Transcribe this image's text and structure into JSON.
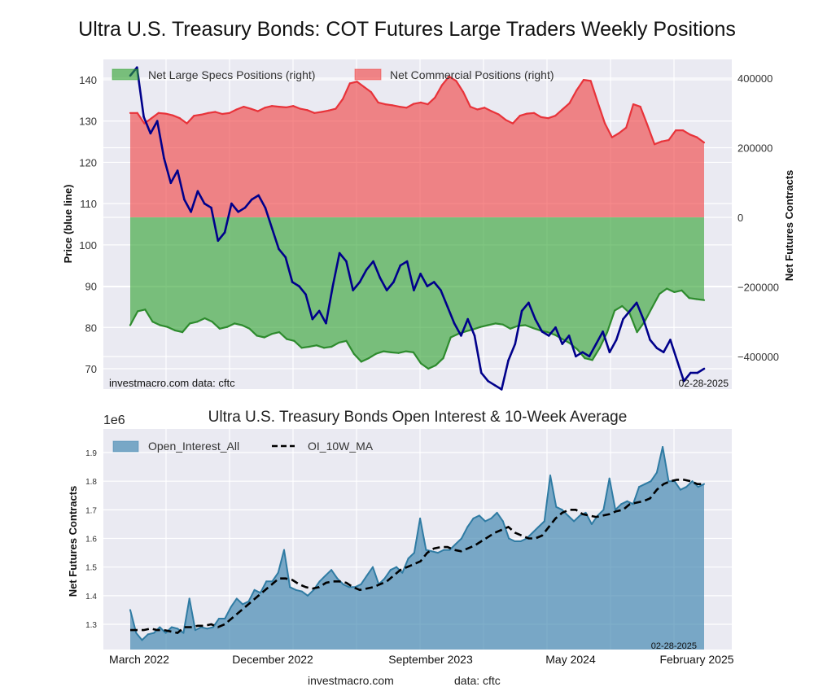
{
  "chart_data": [
    {
      "type": "area",
      "title": "Ultra U.S. Treasury Bonds: COT Futures Large Traders Weekly Positions",
      "ylabel": "Price (blue line)",
      "ylabel_right": "Net Futures Contracts",
      "ylim": [
        65,
        145
      ],
      "ylim_right": [
        -495000,
        450000
      ],
      "yticks": [
        70,
        80,
        90,
        100,
        110,
        120,
        130,
        140
      ],
      "yticks_right": [
        -400000,
        -200000,
        0,
        200000,
        400000
      ],
      "ytick_labels_right": [
        "−400000",
        "−200000",
        "0",
        "200000",
        "400000"
      ],
      "grid": true,
      "legend_position": "top-left",
      "watermark": "investmacro.com   data: cftc",
      "date_stamp": "02-28-2025",
      "x_index_range": [
        0,
        77
      ],
      "series": [
        {
          "name": "Net Large Specs Positions (right)",
          "axis": "right",
          "color": "#2ca02c",
          "values": [
            -310000,
            -270000,
            -265000,
            -300000,
            -310000,
            -315000,
            -325000,
            -330000,
            -305000,
            -300000,
            -290000,
            -300000,
            -320000,
            -315000,
            -305000,
            -310000,
            -320000,
            -340000,
            -345000,
            -335000,
            -330000,
            -350000,
            -355000,
            -375000,
            -372000,
            -368000,
            -375000,
            -372000,
            -360000,
            -355000,
            -392000,
            -415000,
            -405000,
            -392000,
            -385000,
            -388000,
            -390000,
            -385000,
            -388000,
            -420000,
            -435000,
            -425000,
            -405000,
            -345000,
            -335000,
            -328000,
            -322000,
            -315000,
            -310000,
            -305000,
            -308000,
            -320000,
            -312000,
            -310000,
            -318000,
            -325000,
            -330000,
            -338000,
            -350000,
            -362000,
            -380000,
            -405000,
            -410000,
            -375000,
            -330000,
            -268000,
            -255000,
            -275000,
            -330000,
            -300000,
            -260000,
            -220000,
            -205000,
            -215000,
            -210000,
            -232000,
            -235000,
            -238000
          ]
        },
        {
          "name": "Net Commercial Positions (right)",
          "axis": "right",
          "color": "#f03c3c",
          "values": [
            300000,
            300000,
            270000,
            285000,
            300000,
            298000,
            293000,
            285000,
            270000,
            292000,
            295000,
            300000,
            303000,
            297000,
            300000,
            310000,
            318000,
            312000,
            305000,
            315000,
            320000,
            318000,
            316000,
            320000,
            312000,
            308000,
            300000,
            303000,
            307000,
            312000,
            340000,
            385000,
            390000,
            375000,
            360000,
            330000,
            325000,
            322000,
            318000,
            315000,
            326000,
            330000,
            325000,
            344000,
            380000,
            405000,
            392000,
            360000,
            318000,
            310000,
            315000,
            305000,
            296000,
            280000,
            270000,
            292000,
            298000,
            300000,
            288000,
            285000,
            292000,
            310000,
            328000,
            365000,
            395000,
            392000,
            330000,
            270000,
            230000,
            242000,
            258000,
            325000,
            318000,
            265000,
            210000,
            218000,
            222000,
            250000,
            250000,
            238000,
            230000,
            215000
          ]
        },
        {
          "name": "Price (blue line)",
          "axis": "left",
          "color": "#00008b",
          "values": [
            141,
            143,
            131,
            127,
            130,
            121,
            115,
            118,
            111,
            108,
            113,
            110,
            109,
            101,
            103,
            110,
            108,
            109,
            111,
            112,
            109,
            104,
            99,
            97,
            91,
            90,
            88,
            82,
            84,
            81,
            90,
            98,
            96,
            89,
            91,
            94,
            96,
            92,
            89,
            91,
            95,
            96,
            89,
            93,
            90,
            91,
            89,
            85,
            81,
            78,
            82,
            78,
            69,
            67,
            66,
            65,
            72,
            76,
            84,
            86,
            82,
            79,
            78,
            80,
            76,
            78,
            73,
            74,
            73,
            76,
            79,
            74,
            77,
            82,
            84,
            86,
            82,
            77,
            75,
            74,
            77,
            72,
            67,
            69,
            69,
            70
          ]
        }
      ]
    },
    {
      "type": "area",
      "title": "Ultra U.S. Treasury Bonds Open Interest & 10-Week Average",
      "ylabel": "Net Futures Contracts",
      "scale_label": "1e6",
      "ylim": [
        1.2,
        1.96
      ],
      "yticks": [
        1.3,
        1.4,
        1.5,
        1.6,
        1.7,
        1.8,
        1.9
      ],
      "xtick_labels": [
        "March 2022",
        "December 2022",
        "September 2023",
        "May 2024",
        "February 2025"
      ],
      "grid": true,
      "legend_position": "top-left",
      "date_stamp": "02-28-2025",
      "series": [
        {
          "name": "Open_Interest_All",
          "color": "#3b82ad",
          "values": [
            1.35,
            1.27,
            1.245,
            1.265,
            1.27,
            1.29,
            1.27,
            1.29,
            1.285,
            1.27,
            1.39,
            1.28,
            1.29,
            1.285,
            1.29,
            1.32,
            1.32,
            1.36,
            1.39,
            1.37,
            1.38,
            1.42,
            1.41,
            1.45,
            1.45,
            1.48,
            1.56,
            1.43,
            1.42,
            1.415,
            1.4,
            1.42,
            1.45,
            1.47,
            1.49,
            1.46,
            1.44,
            1.43,
            1.43,
            1.44,
            1.47,
            1.5,
            1.44,
            1.46,
            1.49,
            1.5,
            1.48,
            1.53,
            1.55,
            1.67,
            1.56,
            1.555,
            1.55,
            1.56,
            1.56,
            1.58,
            1.6,
            1.64,
            1.67,
            1.68,
            1.66,
            1.67,
            1.69,
            1.66,
            1.6,
            1.59,
            1.59,
            1.6,
            1.62,
            1.64,
            1.66,
            1.82,
            1.71,
            1.7,
            1.68,
            1.66,
            1.68,
            1.69,
            1.65,
            1.68,
            1.7,
            1.81,
            1.7,
            1.72,
            1.73,
            1.72,
            1.78,
            1.79,
            1.8,
            1.83,
            1.92,
            1.8,
            1.8,
            1.77,
            1.78,
            1.8,
            1.78,
            1.79
          ]
        },
        {
          "name": "OI_10W_MA",
          "color": "#000000",
          "values": [
            1.28,
            1.28,
            1.28,
            1.285,
            1.28,
            1.28,
            1.275,
            1.27,
            1.29,
            1.29,
            1.295,
            1.295,
            1.3,
            1.29,
            1.3,
            1.32,
            1.34,
            1.36,
            1.38,
            1.4,
            1.42,
            1.44,
            1.46,
            1.46,
            1.455,
            1.44,
            1.43,
            1.425,
            1.43,
            1.445,
            1.45,
            1.45,
            1.445,
            1.43,
            1.42,
            1.425,
            1.43,
            1.44,
            1.45,
            1.47,
            1.49,
            1.5,
            1.51,
            1.52,
            1.55,
            1.565,
            1.57,
            1.57,
            1.56,
            1.555,
            1.565,
            1.575,
            1.59,
            1.605,
            1.62,
            1.63,
            1.64,
            1.62,
            1.61,
            1.6,
            1.6,
            1.61,
            1.64,
            1.67,
            1.69,
            1.7,
            1.7,
            1.685,
            1.68,
            1.675,
            1.68,
            1.685,
            1.695,
            1.7,
            1.72,
            1.725,
            1.73,
            1.74,
            1.77,
            1.79,
            1.8,
            1.805,
            1.805,
            1.8,
            1.79,
            1.79
          ]
        }
      ]
    }
  ],
  "footer": {
    "site": "investmacro.com",
    "data": "data: cftc"
  }
}
